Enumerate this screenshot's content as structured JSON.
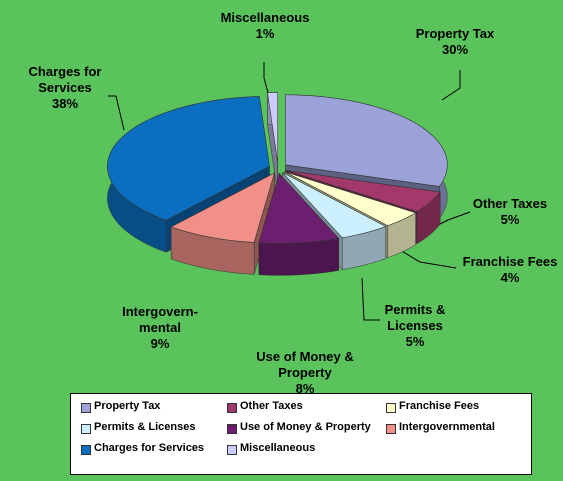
{
  "chart_data": {
    "type": "pie3d",
    "categories": [
      "Property Tax",
      "Other Taxes",
      "Franchise Fees",
      "Permits & Licenses",
      "Use of Money & Property",
      "Intergovernmental",
      "Charges for Services",
      "Miscellaneous"
    ],
    "labels": [
      "Property Tax",
      "Other Taxes",
      "Franchise Fees",
      "Permits & Licenses",
      "Use of Money & Property",
      "Intergovern-mental",
      "Charges for Services",
      "Miscellaneous"
    ],
    "values": [
      30,
      5,
      4,
      5,
      8,
      9,
      38,
      1
    ],
    "value_labels": [
      "30%",
      "5%",
      "4%",
      "5%",
      "8%",
      "9%",
      "38%",
      "1%"
    ],
    "colors": [
      "#9aa2d8",
      "#a3386b",
      "#ffffcc",
      "#ccf0ff",
      "#6b1f6e",
      "#f09088",
      "#0a6fc1",
      "#ccccff"
    ],
    "legend": "bottom"
  }
}
